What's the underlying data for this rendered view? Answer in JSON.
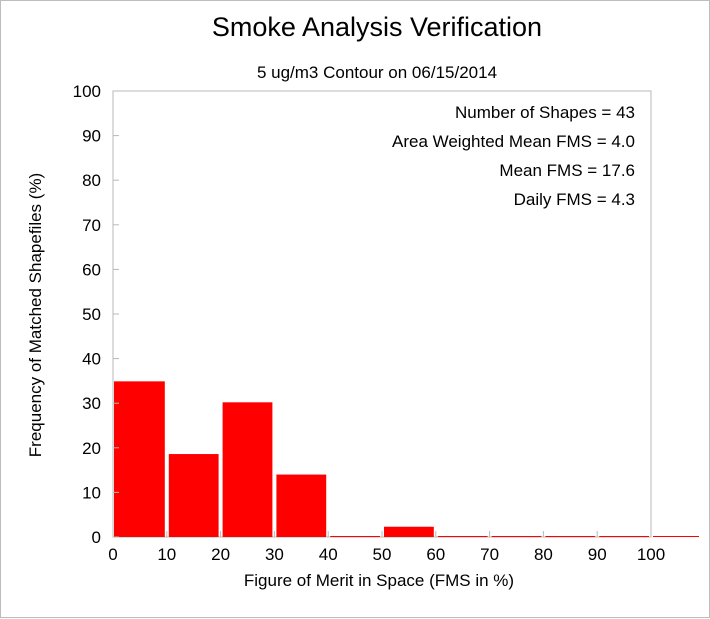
{
  "chart_data": {
    "type": "bar",
    "title": "Smoke Analysis Verification",
    "subtitle": "5 ug/m3 Contour on 06/15/2014",
    "xlabel": "Figure of Merit in Space (FMS in %)",
    "ylabel": "Frequency of Matched Shapefiles (%)",
    "xlim": [
      0,
      110
    ],
    "ylim": [
      0,
      100
    ],
    "x_ticks": [
      "0",
      "10",
      "20",
      "30",
      "40",
      "50",
      "60",
      "70",
      "80",
      "90",
      "100"
    ],
    "y_ticks": [
      "0",
      "10",
      "20",
      "30",
      "40",
      "50",
      "60",
      "70",
      "80",
      "90",
      "100"
    ],
    "bin_starts": [
      0,
      10,
      20,
      30,
      40,
      50,
      60,
      70,
      80,
      90,
      100
    ],
    "values": [
      34.9,
      18.6,
      30.2,
      14.0,
      0,
      2.3,
      0,
      0,
      0,
      0,
      0
    ],
    "bar_color": "#ff0000",
    "grid": false,
    "annotations": [
      "Number of Shapes = 43",
      "Area Weighted Mean FMS = 4.0",
      "Mean FMS = 17.6",
      "Daily FMS = 4.3"
    ]
  }
}
